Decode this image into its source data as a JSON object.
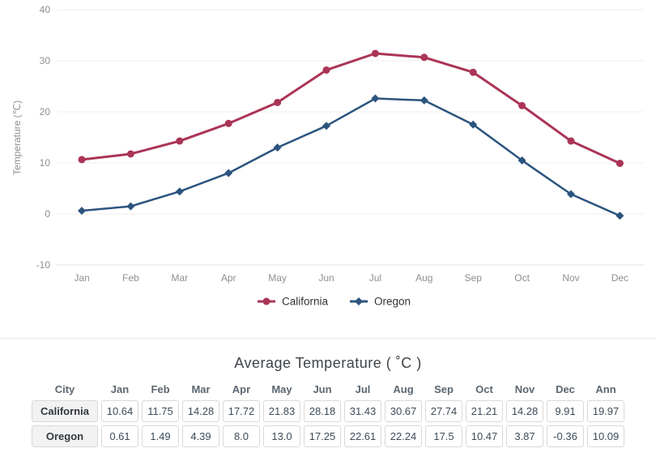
{
  "chart_data": {
    "type": "line",
    "title": "",
    "ylabel": "Temperature (℃)",
    "ylim": [
      -10,
      40
    ],
    "yticks": [
      -10,
      0,
      10,
      20,
      30,
      40
    ],
    "grid": true,
    "legend_position": "bottom",
    "categories": [
      "Jan",
      "Feb",
      "Mar",
      "Apr",
      "May",
      "Jun",
      "Jul",
      "Aug",
      "Sep",
      "Oct",
      "Nov",
      "Dec"
    ],
    "series": [
      {
        "name": "California",
        "marker": "circle",
        "color": "#ab3456",
        "values": [
          10.64,
          11.75,
          14.28,
          17.72,
          21.83,
          28.18,
          31.43,
          30.67,
          27.74,
          21.21,
          14.28,
          9.91
        ]
      },
      {
        "name": "Oregon",
        "marker": "diamond",
        "color": "#2b547e",
        "values": [
          0.61,
          1.49,
          4.39,
          8.0,
          13.0,
          17.25,
          22.61,
          22.24,
          17.5,
          10.47,
          3.87,
          -0.36
        ]
      }
    ]
  },
  "table": {
    "title": "Average Temperature ( ˚C )",
    "columns": [
      "City",
      "Jan",
      "Feb",
      "Mar",
      "Apr",
      "May",
      "Jun",
      "Jul",
      "Aug",
      "Sep",
      "Oct",
      "Nov",
      "Dec",
      "Ann"
    ],
    "rows": [
      {
        "city": "California",
        "values": [
          "10.64",
          "11.75",
          "14.28",
          "17.72",
          "21.83",
          "28.18",
          "31.43",
          "30.67",
          "27.74",
          "21.21",
          "14.28",
          "9.91",
          "19.97"
        ]
      },
      {
        "city": "Oregon",
        "values": [
          "0.61",
          "1.49",
          "4.39",
          "8.0",
          "13.0",
          "17.25",
          "22.61",
          "22.24",
          "17.5",
          "10.47",
          "3.87",
          "-0.36",
          "10.09"
        ]
      }
    ]
  },
  "colors": {
    "axis_text": "#8f8f8f",
    "gridline": "#efefef",
    "axis_line": "#e0e0e0",
    "legend_text": "#333333"
  }
}
